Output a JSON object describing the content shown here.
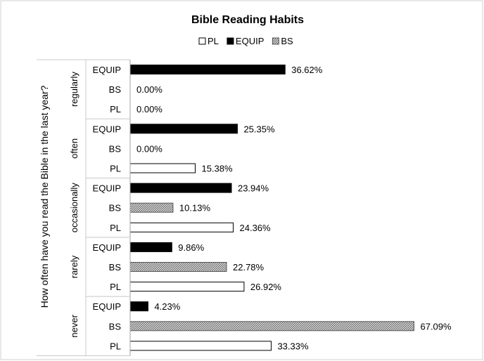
{
  "chart_data": {
    "type": "bar",
    "orientation": "horizontal",
    "title": "Bible Reading Habits",
    "ylabel": "How often have you read the Bible in the last year?",
    "xlabel": "",
    "xlim": [
      0,
      70
    ],
    "grid": false,
    "legend_position": "top",
    "legend": [
      {
        "name": "PL",
        "color": "#ffffff",
        "pattern": "none"
      },
      {
        "name": "EQUIP",
        "color": "#000000",
        "pattern": "solid"
      },
      {
        "name": "BS",
        "color": "#808080",
        "pattern": "hatch"
      }
    ],
    "groups": [
      {
        "name": "regularly",
        "bars": [
          {
            "series": "EQUIP",
            "value": 36.62,
            "label": "36.62%"
          },
          {
            "series": "BS",
            "value": 0.0,
            "label": "0.00%"
          },
          {
            "series": "PL",
            "value": 0.0,
            "label": "0.00%"
          }
        ]
      },
      {
        "name": "often",
        "bars": [
          {
            "series": "EQUIP",
            "value": 25.35,
            "label": "25.35%"
          },
          {
            "series": "BS",
            "value": 0.0,
            "label": "0.00%"
          },
          {
            "series": "PL",
            "value": 15.38,
            "label": "15.38%"
          }
        ]
      },
      {
        "name": "occasionally",
        "bars": [
          {
            "series": "EQUIP",
            "value": 23.94,
            "label": "23.94%"
          },
          {
            "series": "BS",
            "value": 10.13,
            "label": "10.13%"
          },
          {
            "series": "PL",
            "value": 24.36,
            "label": "24.36%"
          }
        ]
      },
      {
        "name": "rarely",
        "bars": [
          {
            "series": "EQUIP",
            "value": 9.86,
            "label": "9.86%"
          },
          {
            "series": "BS",
            "value": 22.78,
            "label": "22.78%"
          },
          {
            "series": "PL",
            "value": 26.92,
            "label": "26.92%"
          }
        ]
      },
      {
        "name": "never",
        "bars": [
          {
            "series": "EQUIP",
            "value": 4.23,
            "label": "4.23%"
          },
          {
            "series": "BS",
            "value": 67.09,
            "label": "67.09%"
          },
          {
            "series": "PL",
            "value": 33.33,
            "label": "33.33%"
          }
        ]
      }
    ]
  }
}
